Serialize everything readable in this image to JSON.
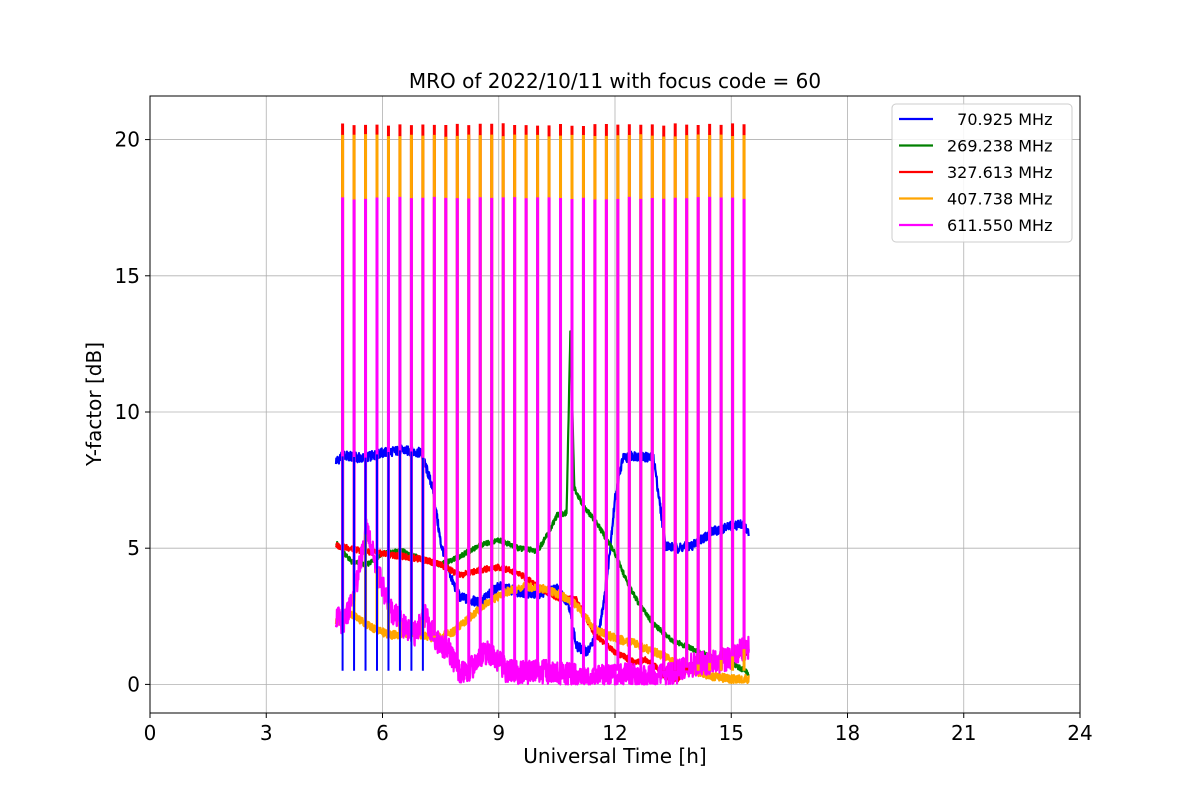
{
  "chart_data": {
    "type": "line",
    "title": "MRO of 2022/10/11 with focus code = 60",
    "xlabel": "Universal Time [h]",
    "ylabel": "Y-factor [dB]",
    "xlim": [
      0,
      24
    ],
    "ylim": [
      -1.05,
      21.6
    ],
    "xticks": [
      0,
      3,
      6,
      9,
      12,
      15,
      18,
      21,
      24
    ],
    "yticks": [
      0,
      5,
      10,
      15,
      20
    ],
    "grid": true,
    "legend_position": "top-right",
    "calibration_pulses": {
      "start": 4.97,
      "end": 15.33,
      "count": 36,
      "peak_values": {
        "611.550 MHz": 17.85,
        "407.738 MHz": 20.15,
        "327.613 MHz": 20.55
      }
    },
    "series": [
      {
        "name": "  70.925 MHz",
        "color": "#0000ff",
        "x": [
          4.8,
          5.0,
          5.5,
          6.0,
          6.5,
          7.0,
          7.3,
          7.5,
          7.8,
          8.0,
          8.5,
          9.0,
          9.5,
          10.0,
          10.5,
          10.8,
          11.0,
          11.3,
          11.6,
          11.8,
          12.0,
          12.2,
          12.5,
          13.0,
          13.3,
          13.6,
          14.0,
          14.5,
          15.0,
          15.3,
          15.45
        ],
        "y": [
          8.2,
          8.4,
          8.3,
          8.5,
          8.6,
          8.5,
          7.2,
          5.2,
          3.8,
          3.2,
          3.0,
          3.6,
          3.4,
          3.3,
          3.5,
          3.0,
          1.4,
          1.2,
          2.0,
          4.0,
          6.8,
          8.3,
          8.4,
          8.3,
          5.1,
          5.0,
          5.1,
          5.6,
          5.8,
          5.9,
          5.5
        ]
      },
      {
        "name": "269.238 MHz",
        "color": "#008000",
        "x": [
          4.8,
          5.2,
          5.6,
          6.0,
          6.5,
          7.0,
          7.5,
          8.0,
          8.5,
          9.0,
          9.5,
          10.0,
          10.3,
          10.5,
          10.75,
          10.85,
          10.95,
          11.2,
          11.5,
          12.0,
          12.3,
          12.6,
          13.0,
          13.5,
          14.0,
          14.5,
          15.0,
          15.45
        ],
        "y": [
          5.2,
          4.5,
          4.4,
          4.8,
          4.9,
          4.6,
          4.4,
          4.7,
          5.1,
          5.3,
          5.0,
          4.9,
          5.6,
          6.2,
          6.3,
          13.05,
          7.2,
          6.5,
          6.0,
          4.8,
          3.8,
          3.0,
          2.2,
          1.6,
          1.3,
          1.0,
          0.8,
          0.4
        ]
      },
      {
        "name": "327.613 MHz",
        "color": "#ff0000",
        "x": [
          4.8,
          5.5,
          6.0,
          6.5,
          7.0,
          7.5,
          8.0,
          8.5,
          9.0,
          9.5,
          10.0,
          10.5,
          11.0,
          11.5,
          12.0,
          12.5,
          12.8,
          13.0,
          13.3,
          13.6,
          14.0,
          14.5,
          15.0,
          15.45
        ],
        "y": [
          5.1,
          4.9,
          4.8,
          4.7,
          4.6,
          4.4,
          4.0,
          4.2,
          4.3,
          4.1,
          3.6,
          3.2,
          3.1,
          1.8,
          1.2,
          0.8,
          0.9,
          0.7,
          0.3,
          0.2,
          0.7,
          0.9,
          1.0,
          1.2
        ]
      },
      {
        "name": "407.738 MHz",
        "color": "#ffa500",
        "x": [
          4.8,
          5.2,
          5.7,
          6.2,
          6.8,
          7.3,
          7.8,
          8.2,
          8.7,
          9.2,
          9.7,
          10.2,
          10.6,
          11.0,
          11.5,
          12.0,
          12.5,
          13.0,
          13.5,
          14.0,
          14.5,
          15.0,
          15.45
        ],
        "y": [
          2.3,
          2.6,
          2.1,
          1.8,
          1.9,
          1.7,
          1.9,
          2.4,
          3.0,
          3.4,
          3.6,
          3.5,
          3.3,
          2.9,
          2.0,
          1.7,
          1.5,
          1.2,
          0.9,
          0.5,
          0.3,
          0.2,
          0.2
        ]
      },
      {
        "name": "611.550 MHz",
        "color": "#ff00ff",
        "x": [
          4.8,
          5.0,
          5.3,
          5.6,
          5.9,
          6.2,
          6.5,
          6.8,
          7.1,
          7.4,
          7.7,
          8.0,
          8.3,
          8.6,
          8.9,
          9.2,
          9.6,
          10.0,
          10.5,
          11.0,
          11.5,
          12.0,
          12.5,
          13.0,
          13.5,
          14.0,
          14.5,
          15.0,
          15.45
        ],
        "y": [
          2.5,
          2.2,
          3.5,
          5.8,
          4.0,
          2.8,
          2.2,
          1.8,
          2.5,
          1.6,
          1.3,
          0.4,
          0.6,
          1.2,
          1.0,
          0.5,
          0.4,
          0.5,
          0.4,
          0.3,
          0.2,
          0.4,
          0.3,
          0.3,
          0.4,
          0.7,
          0.8,
          1.0,
          1.4
        ]
      }
    ]
  }
}
